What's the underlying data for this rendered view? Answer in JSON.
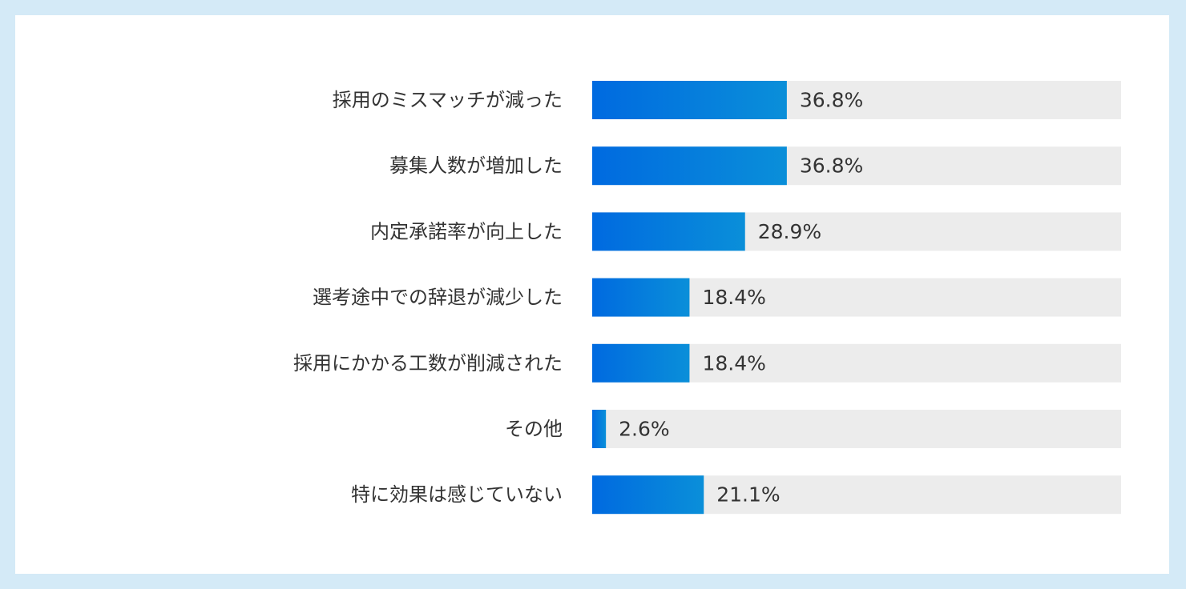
{
  "chart_data": {
    "type": "bar",
    "orientation": "horizontal",
    "categories": [
      "採用のミスマッチが減った",
      "募集人数が増加した",
      "内定承諾率が向上した",
      "選考途中での辞退が減少した",
      "採用にかかる工数が削減された",
      "その他",
      "特に効果は感じていない"
    ],
    "values": [
      36.8,
      36.8,
      28.9,
      18.4,
      18.4,
      2.6,
      21.1
    ],
    "value_labels": [
      "36.8%",
      "36.8%",
      "28.9%",
      "18.4%",
      "18.4%",
      "2.6%",
      "21.1%"
    ],
    "unit": "%",
    "xlim": [
      0,
      100
    ],
    "title": "",
    "xlabel": "",
    "ylabel": "",
    "grid": false,
    "legend": "none",
    "colors": {
      "bar_start": "#006ae0",
      "bar_end": "#0a8fd9",
      "track": "#ececec",
      "text": "#333333",
      "page_background": "#d4eaf7",
      "panel_background": "#ffffff"
    }
  }
}
